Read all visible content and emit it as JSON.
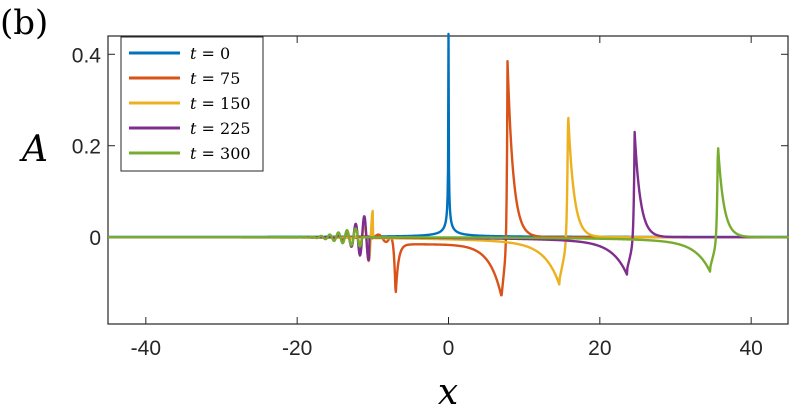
{
  "panel_label": "(b)",
  "chart_data": {
    "type": "line",
    "title": "",
    "xlabel": "x",
    "ylabel": "A",
    "xlim": [
      -45,
      45
    ],
    "ylim": [
      -0.19,
      0.44
    ],
    "xticks": [
      -40,
      -20,
      0,
      20,
      40
    ],
    "xtick_labels": [
      "-40",
      "-20",
      "0",
      "20",
      "40"
    ],
    "yticks": [
      0,
      0.2,
      0.4
    ],
    "ytick_labels": [
      "0",
      "0.2",
      "0.4"
    ],
    "grid": false,
    "legend_position": "top-left",
    "series": [
      {
        "name": "t = 0",
        "label_var": "t",
        "label_val": "0",
        "color": "#0072BD",
        "peak_x": 0.0,
        "peak": 0.44,
        "dip_x": null,
        "dip": 0.0,
        "ripple_start": null,
        "ripple_end": null,
        "ripple_amp": 0.0
      },
      {
        "name": "t = 75",
        "label_var": "t",
        "label_val": "75",
        "color": "#D95319",
        "peak_x": 7.8,
        "peak": 0.385,
        "dip_x": 7.0,
        "dip": -0.13,
        "ripple_start": -11.0,
        "ripple_end": -7.6,
        "ripple_amp": 0.02
      },
      {
        "name": "t = 150",
        "label_var": "t",
        "label_val": "150",
        "color": "#EDB120",
        "peak_x": 15.8,
        "peak": 0.275,
        "dip_x": 14.7,
        "dip": -0.09,
        "ripple_start": -13.0,
        "ripple_end": -10.0,
        "ripple_amp": 0.06
      },
      {
        "name": "t = 225",
        "label_var": "t",
        "label_val": "225",
        "color": "#7E2F8E",
        "peak_x": 24.6,
        "peak": 0.23,
        "dip_x": 23.6,
        "dip": -0.07,
        "ripple_start": -16.0,
        "ripple_end": -10.5,
        "ripple_amp": 0.05
      },
      {
        "name": "t = 300",
        "label_var": "t",
        "label_val": "300",
        "color": "#77AC30",
        "peak_x": 35.6,
        "peak": 0.205,
        "dip_x": 34.6,
        "dip": -0.065,
        "ripple_start": -20.0,
        "ripple_end": -11.5,
        "ripple_amp": 0.02
      }
    ]
  }
}
